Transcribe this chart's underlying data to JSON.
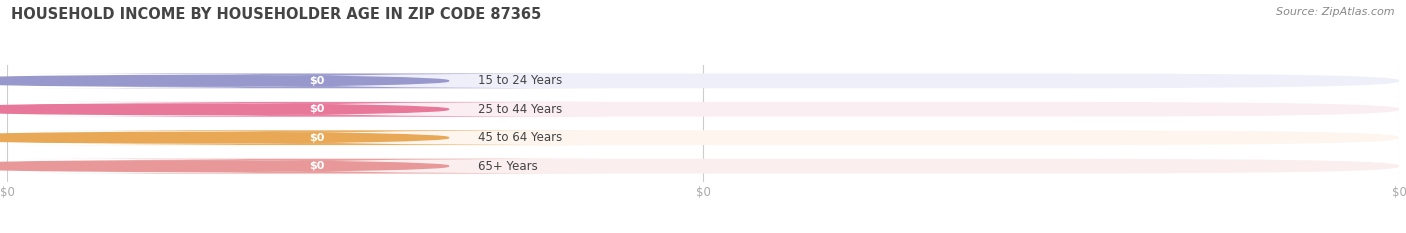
{
  "title": "HOUSEHOLD INCOME BY HOUSEHOLDER AGE IN ZIP CODE 87365",
  "source": "Source: ZipAtlas.com",
  "categories": [
    "15 to 24 Years",
    "25 to 44 Years",
    "45 to 64 Years",
    "65+ Years"
  ],
  "values": [
    0,
    0,
    0,
    0
  ],
  "bar_colors": [
    "#9898cc",
    "#e8789a",
    "#e8a855",
    "#e89898"
  ],
  "bar_bg_colors": [
    "#efeffa",
    "#faeef3",
    "#fdf5ee",
    "#faeeee"
  ],
  "label_pill_bg": "#ffffff",
  "tick_label_color": "#aaaaaa",
  "title_color": "#444444",
  "background_color": "#ffffff",
  "figsize": [
    14.06,
    2.33
  ],
  "dpi": 100
}
